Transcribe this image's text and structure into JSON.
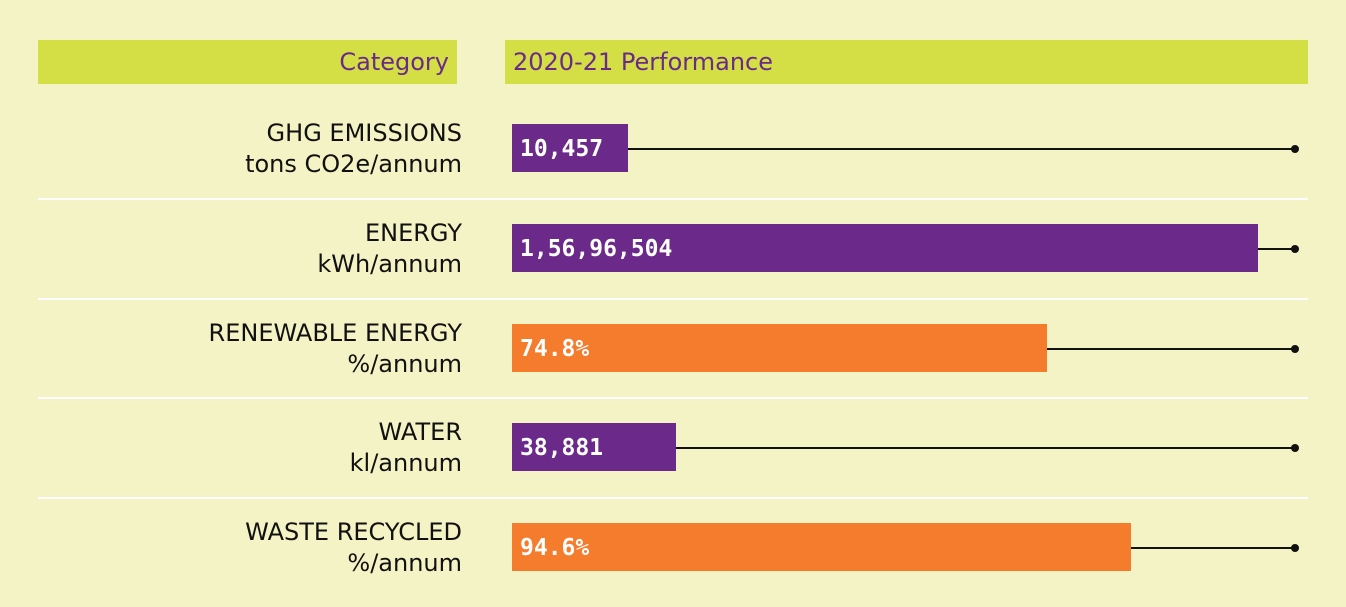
{
  "header": {
    "category": "Category",
    "performance": "2020-21 Performance"
  },
  "rows": [
    {
      "category": "GHG EMISSIONS",
      "unit": "tons CO2e/annum",
      "value": "10,457",
      "color": "#6b2a8a"
    },
    {
      "category": "ENERGY",
      "unit": "kWh/annum",
      "value": "1,56,96,504",
      "color": "#6b2a8a"
    },
    {
      "category": "RENEWABLE ENERGY",
      "unit": "%/annum",
      "value": "74.8%",
      "color": "#f47c2c"
    },
    {
      "category": "WATER",
      "unit": "kl/annum",
      "value": "38,881",
      "color": "#6b2a8a"
    },
    {
      "category": "WASTE RECYCLED",
      "unit": "%/annum",
      "value": "94.6%",
      "color": "#f47c2c"
    }
  ]
}
